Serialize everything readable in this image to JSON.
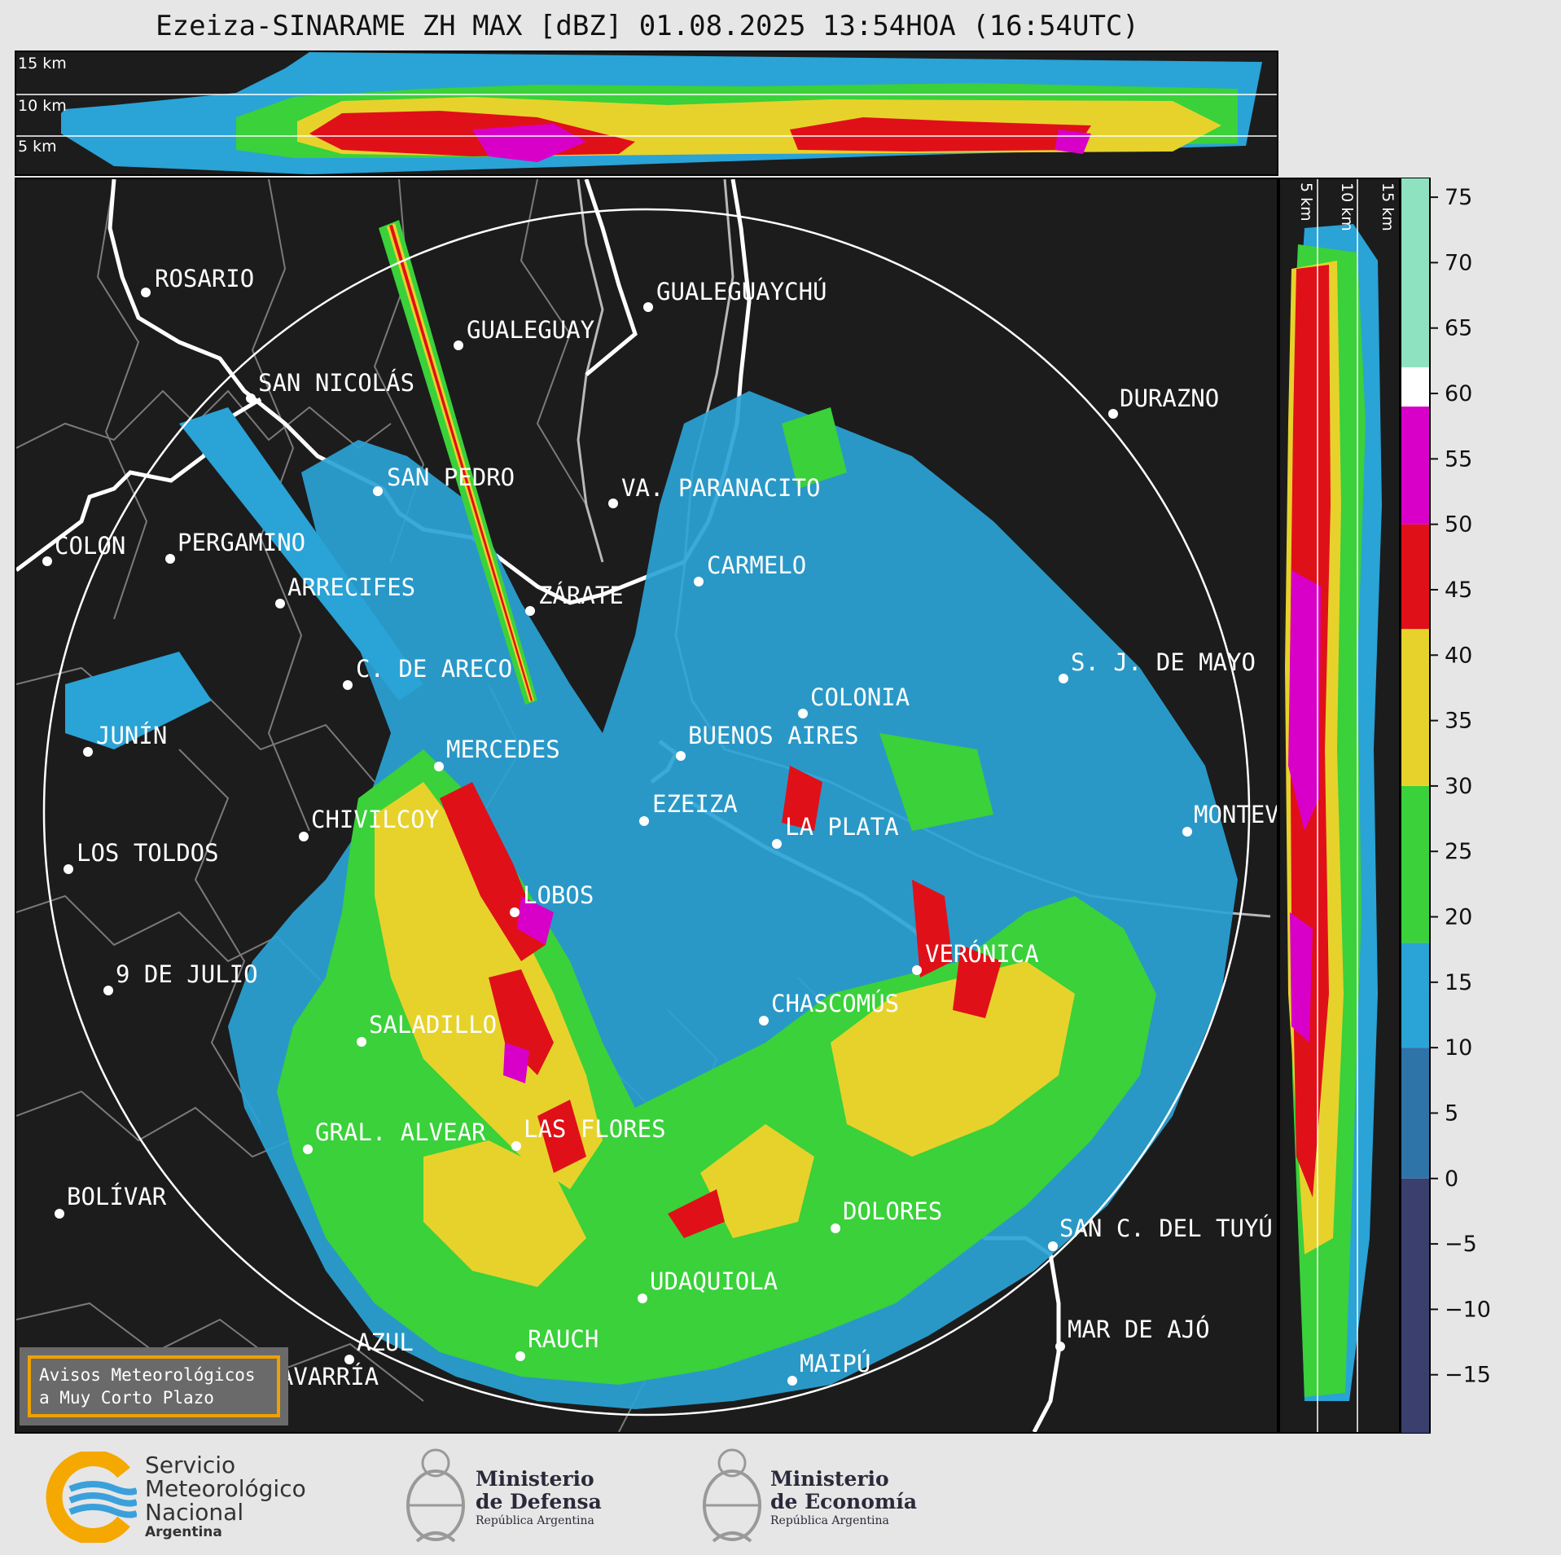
{
  "title": "Ezeiza-SINARAME ZH MAX [dBZ] 01.08.2025 13:54HOA (16:54UTC)",
  "top_panel": {
    "altitude_labels": [
      "15 km",
      "10 km",
      "5 km"
    ]
  },
  "side_panel": {
    "altitude_labels": [
      "5 km",
      "10 km",
      "15 km"
    ]
  },
  "cities": [
    {
      "name": "ROSARIO"
    },
    {
      "name": "GUALEGUAYCHÚ"
    },
    {
      "name": "GUALEGUAY"
    },
    {
      "name": "SAN NICOLÁS"
    },
    {
      "name": "DURAZNO"
    },
    {
      "name": "SAN PEDRO"
    },
    {
      "name": "VA. PARANACITO"
    },
    {
      "name": "COLON"
    },
    {
      "name": "PERGAMINO"
    },
    {
      "name": "CARMELO"
    },
    {
      "name": "ARRECIFES"
    },
    {
      "name": "ZÁRATE"
    },
    {
      "name": "S. J. DE MAYO"
    },
    {
      "name": "C. DE ARECO"
    },
    {
      "name": "COLONIA"
    },
    {
      "name": "JUNÍN"
    },
    {
      "name": "BUENOS AIRES"
    },
    {
      "name": "MERCEDES"
    },
    {
      "name": "EZEIZA"
    },
    {
      "name": "MONTEVIDEO"
    },
    {
      "name": "CHIVILCOY"
    },
    {
      "name": "LA PLATA"
    },
    {
      "name": "LOS TOLDOS"
    },
    {
      "name": "LOBOS"
    },
    {
      "name": "VERÓNICA"
    },
    {
      "name": "9 DE JULIO"
    },
    {
      "name": "CHASCOMÚS"
    },
    {
      "name": "SALADILLO"
    },
    {
      "name": "GRAL. ALVEAR"
    },
    {
      "name": "LAS FLORES"
    },
    {
      "name": "BOLÍVAR"
    },
    {
      "name": "DOLORES"
    },
    {
      "name": "SAN C. DEL TUYÚ"
    },
    {
      "name": "UDAQUIOLA"
    },
    {
      "name": "AZUL"
    },
    {
      "name": "RAUCH"
    },
    {
      "name": "MAR DE AJÓ"
    },
    {
      "name": "OLAVARRÍA"
    },
    {
      "name": "MAIPÚ"
    }
  ],
  "colorbar": {
    "ticks": [
      "75",
      "70",
      "65",
      "60",
      "55",
      "50",
      "45",
      "40",
      "35",
      "30",
      "25",
      "20",
      "15",
      "10",
      "5",
      "0",
      "−5",
      "−10",
      "−15"
    ],
    "tick_values": [
      75,
      70,
      65,
      60,
      55,
      50,
      45,
      40,
      35,
      30,
      25,
      20,
      15,
      10,
      5,
      0,
      -5,
      -10,
      -15
    ],
    "range": [
      -19.5,
      76.5
    ],
    "bands": [
      {
        "from": -20,
        "to": 0,
        "color": "#3b3f6e"
      },
      {
        "from": 0,
        "to": 10,
        "color": "#2f74a8"
      },
      {
        "from": 10,
        "to": 18,
        "color": "#2aa3d6"
      },
      {
        "from": 18,
        "to": 30,
        "color": "#3ad13a"
      },
      {
        "from": 30,
        "to": 42,
        "color": "#e7d22c"
      },
      {
        "from": 42,
        "to": 50,
        "color": "#e01018"
      },
      {
        "from": 50,
        "to": 59,
        "color": "#d800c8"
      },
      {
        "from": 59,
        "to": 62,
        "color": "#ffffff"
      },
      {
        "from": 62,
        "to": 77,
        "color": "#8fe2c0"
      }
    ]
  },
  "notice": {
    "line1": "Avisos Meteorológicos",
    "line2": "a Muy Corto Plazo"
  },
  "logos": {
    "smn": {
      "line1": "Servicio",
      "line2": "Meteorológico",
      "line3": "Nacional",
      "line4": "Argentina"
    },
    "defensa": {
      "line1": "Ministerio",
      "line2": "de Defensa",
      "line3": "República Argentina"
    },
    "economia": {
      "line1": "Ministerio",
      "line2": "de Economía",
      "line3": "República Argentina"
    }
  },
  "colors": {
    "background": "#1c1c1c",
    "weak": "#2aa3d6",
    "moderate": "#3ad13a",
    "strong": "#e7d22c",
    "heavy": "#e01018",
    "extreme": "#d800c8"
  }
}
